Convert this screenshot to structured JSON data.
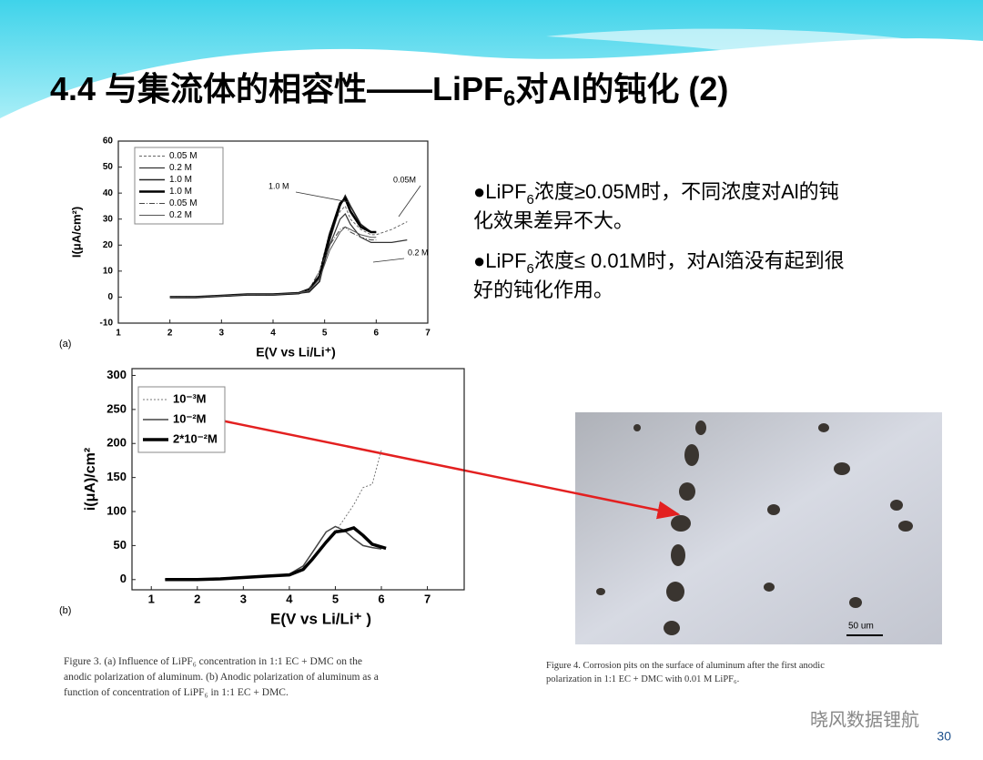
{
  "title": {
    "parts": [
      "4.4 与集流体的相容性——LiPF",
      "6",
      "对Al的钝化 (2)"
    ]
  },
  "bullets": [
    {
      "parts": [
        "●LiPF",
        "6",
        "浓度≥0.05M时，不同浓度对Al的钝",
        "化效果差异不大。"
      ]
    },
    {
      "parts": [
        "●LiPF",
        "6",
        "浓度≤ 0.01M时，对Al箔没有起到很",
        "好的钝化作用。"
      ]
    }
  ],
  "chart_a": {
    "type": "line",
    "panel": "(a)",
    "ylabel": "I(μA/cm²)",
    "xlabel": "E(V vs Li/Li⁺)",
    "xlim": [
      1,
      7
    ],
    "ylim": [
      -10,
      60
    ],
    "xticks": [
      1,
      2,
      3,
      4,
      5,
      6,
      7
    ],
    "yticks": [
      -10,
      0,
      10,
      20,
      30,
      40,
      50,
      60
    ],
    "x": [
      2.0,
      2.5,
      3.0,
      3.5,
      4.0,
      4.5,
      4.7,
      4.9,
      5.1,
      5.3,
      5.4,
      5.5,
      5.7,
      5.9,
      6.0,
      6.3,
      6.6
    ],
    "series": [
      {
        "name": "0.05 M",
        "color": "#666666",
        "values": [
          0,
          0,
          0.5,
          1,
          1,
          1.5,
          3,
          10,
          25,
          33,
          35,
          30,
          26,
          24,
          24,
          26,
          29
        ]
      },
      {
        "name": "0.2 M",
        "color": "#333333",
        "values": [
          0,
          0,
          0.5,
          1,
          1,
          1.5,
          3,
          8,
          20,
          30,
          32,
          28,
          23,
          21,
          21,
          21,
          22
        ]
      },
      {
        "name": "1.0 M",
        "color": "#222222",
        "values": [
          0,
          0,
          0.5,
          1,
          1,
          1.5,
          2,
          6,
          22,
          35,
          39,
          35,
          28,
          25,
          25,
          null,
          null
        ]
      },
      {
        "name": "1.0 M",
        "color": "#000000",
        "values": [
          0,
          0,
          0.5,
          1,
          1,
          1.5,
          3,
          8,
          24,
          36,
          38,
          33,
          27,
          25,
          25,
          null,
          null
        ]
      },
      {
        "name": "0.05 M",
        "color": "#444444",
        "values": [
          0,
          0,
          0.5,
          1,
          1,
          1.5,
          3,
          10,
          20,
          26,
          27,
          25,
          23,
          22,
          22,
          null,
          null
        ]
      },
      {
        "name": "0.2 M",
        "color": "#555555",
        "values": [
          0,
          0,
          0.5,
          1,
          1,
          1.5,
          2.5,
          7,
          18,
          25,
          27,
          26,
          24,
          23,
          23,
          null,
          null
        ]
      }
    ],
    "annotations": [
      "1.0 M",
      "0.05M",
      "0.2 M"
    ]
  },
  "chart_b": {
    "type": "line",
    "panel": "(b)",
    "ylabel": "i(μA)/cm²",
    "xlabel": "E(V vs Li/Li⁺ )",
    "xlim": [
      0.58,
      7.8
    ],
    "ylim": [
      -15,
      310
    ],
    "xticks": [
      1,
      2,
      3,
      4,
      5,
      6,
      7
    ],
    "yticks": [
      0,
      50,
      100,
      150,
      200,
      250,
      300
    ],
    "x": [
      1.3,
      1.5,
      2,
      2.5,
      3,
      3.5,
      4,
      4.3,
      4.5,
      4.8,
      5.0,
      5.2,
      5.4,
      5.6,
      5.8,
      6.0,
      6.1
    ],
    "series": [
      {
        "name": "10⁻³M",
        "color": "#777777",
        "values": [
          0,
          0,
          0,
          1,
          3,
          5,
          8,
          15,
          30,
          55,
          70,
          90,
          110,
          135,
          140,
          190,
          null
        ]
      },
      {
        "name": "10⁻²M",
        "color": "#444444",
        "values": [
          0,
          0,
          0,
          1,
          3,
          5,
          8,
          20,
          40,
          70,
          78,
          72,
          60,
          50,
          47,
          45,
          null
        ]
      },
      {
        "name": "2*10⁻²M",
        "color": "#000000",
        "values": [
          0,
          0,
          0,
          1,
          3,
          5,
          7,
          15,
          30,
          55,
          70,
          72,
          76,
          65,
          52,
          48,
          46
        ]
      }
    ]
  },
  "caption3": [
    "Figure 3. (a) Influence of LiPF₆ concentration in 1:1 EC + DMC on the",
    "anodic polarization of aluminum. (b) Anodic polarization of aluminum as a",
    "function of concentration of LiPF₆ in 1:1 EC + DMC."
  ],
  "caption4": [
    "Figure 4. Corrosion pits on the surface of aluminum after the first anodic",
    "polarization in 1:1 EC + DMC with 0.01 M LiPF₆."
  ],
  "scale_bar": "50 um",
  "watermark": "晓风数据锂航",
  "page_number": "30"
}
